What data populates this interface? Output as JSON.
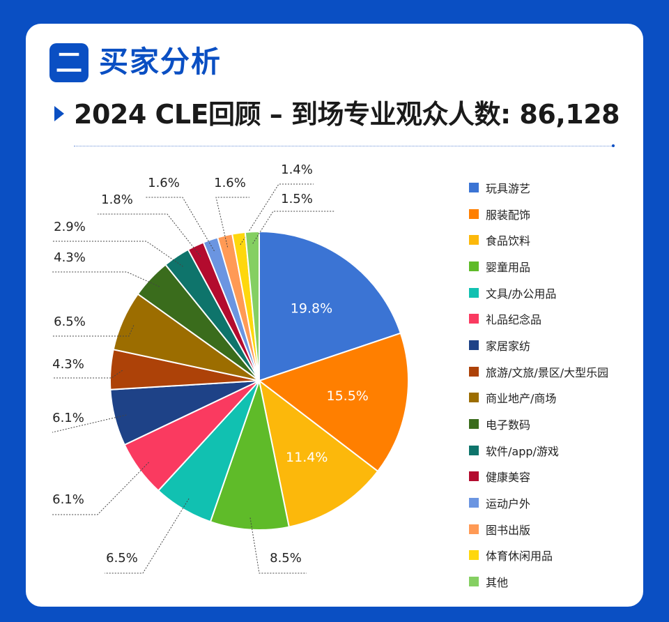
{
  "section": {
    "badge": "二",
    "title": "买家分析"
  },
  "subtitle": "2024 CLE回顾 – 到场专业观众人数: 86,128",
  "chart_data": {
    "type": "pie",
    "title": "2024 CLE回顾 – 到场专业观众人数: 86,128",
    "legend_position": "right",
    "slices": [
      {
        "name": "玩具游艺",
        "value": 19.8,
        "label": "19.8%",
        "color": "#3b74d4"
      },
      {
        "name": "服装配饰",
        "value": 15.5,
        "label": "15.5%",
        "color": "#ff7f00"
      },
      {
        "name": "食品饮料",
        "value": 11.4,
        "label": "11.4%",
        "color": "#fcb80b"
      },
      {
        "name": "婴童用品",
        "value": 8.5,
        "label": "8.5%",
        "color": "#5fbb29"
      },
      {
        "name": "文具/办公用品",
        "value": 6.5,
        "label": "6.5%",
        "color": "#11c1b1"
      },
      {
        "name": "礼品纪念品",
        "value": 6.1,
        "label": "6.1%",
        "color": "#fa3a60"
      },
      {
        "name": "家居家纺",
        "value": 6.1,
        "label": "6.1%",
        "color": "#1e4287"
      },
      {
        "name": "旅游/文旅/景区/大型乐园",
        "value": 4.3,
        "label": "4.3%",
        "color": "#ad4208"
      },
      {
        "name": "商业地产/商场",
        "value": 6.5,
        "label": "6.5%",
        "color": "#9c6d00"
      },
      {
        "name": "电子数码",
        "value": 4.3,
        "label": "4.3%",
        "color": "#3a6c1c"
      },
      {
        "name": "软件/app/游戏",
        "value": 2.9,
        "label": "2.9%",
        "color": "#0e746b"
      },
      {
        "name": "健康美容",
        "value": 1.8,
        "label": "1.8%",
        "color": "#b30b2e"
      },
      {
        "name": "运动户外",
        "value": 1.6,
        "label": "1.6%",
        "color": "#6b95e1"
      },
      {
        "name": "图书出版",
        "value": 1.6,
        "label": "1.6%",
        "color": "#ff9a55"
      },
      {
        "name": "体育休闲用品",
        "value": 1.4,
        "label": "1.4%",
        "color": "#fed70d"
      },
      {
        "name": "其他",
        "value": 1.5,
        "label": "1.5%",
        "color": "#85cf62"
      }
    ]
  }
}
